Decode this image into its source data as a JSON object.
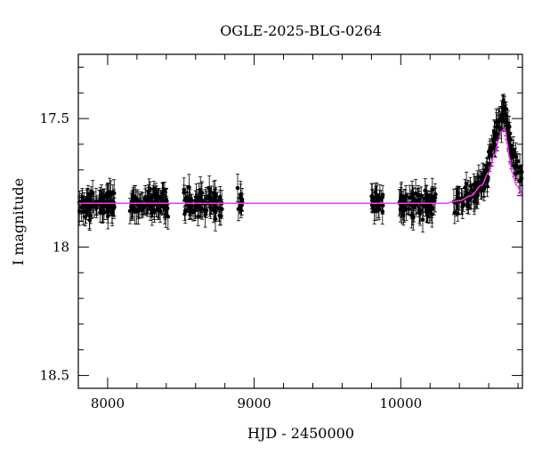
{
  "chart_data": {
    "type": "scatter",
    "title": "OGLE-2025-BLG-0264",
    "xlabel": "HJD - 2450000",
    "ylabel": "I magnitude",
    "xlim": [
      7800,
      10830
    ],
    "ylim": [
      18.55,
      17.25
    ],
    "y_inverted": true,
    "x_ticks": [
      8000,
      9000,
      10000
    ],
    "y_ticks": [
      17.5,
      18,
      18.5
    ],
    "x_tick_labels": [
      "8000",
      "9000",
      "10000"
    ],
    "y_tick_labels": [
      "17.5",
      "18",
      "18.5"
    ],
    "grid": false,
    "legend": "none",
    "colors": {
      "points": "#000000",
      "model": "#ff33ff"
    },
    "baseline_magnitude": 17.83,
    "observing_seasons": [
      {
        "hjd_range": [
          7805,
          8050
        ],
        "mean_mag": 17.84
      },
      {
        "hjd_range": [
          8150,
          8420
        ],
        "mean_mag": 17.83
      },
      {
        "hjd_range": [
          8520,
          8780
        ],
        "mean_mag": 17.83
      },
      {
        "hjd_range": [
          8880,
          8920
        ],
        "mean_mag": 17.82
      },
      {
        "hjd_range": [
          9800,
          9880
        ],
        "mean_mag": 17.83
      },
      {
        "hjd_range": [
          9990,
          10240
        ],
        "mean_mag": 17.84
      },
      {
        "hjd_range": [
          10360,
          10600
        ],
        "mean_mag": 17.81
      },
      {
        "hjd_range": [
          10600,
          10830
        ],
        "mean_mag": 17.62
      }
    ],
    "peak": {
      "hjd": 10710,
      "magnitude": 17.55
    },
    "model_series": {
      "name": "",
      "x": [
        7800,
        10300,
        10400,
        10480,
        10550,
        10600,
        10640,
        10670,
        10690,
        10705,
        10715,
        10725,
        10740,
        10760,
        10790,
        10830
      ],
      "y": [
        17.83,
        17.83,
        17.82,
        17.8,
        17.76,
        17.71,
        17.64,
        17.58,
        17.55,
        17.54,
        17.55,
        17.59,
        17.65,
        17.71,
        17.76,
        17.8
      ]
    }
  }
}
